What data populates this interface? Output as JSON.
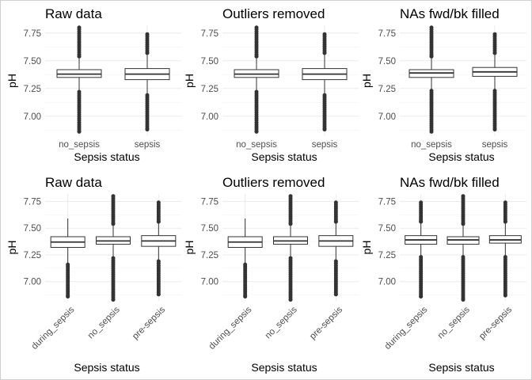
{
  "chart_data": [
    {
      "type": "box",
      "title": "Raw data",
      "xlabel": "Sepsis status",
      "ylabel": "pH",
      "ylim": [
        6.82,
        7.82
      ],
      "yticks": [
        "7.00",
        "7.25",
        "7.50",
        "7.75"
      ],
      "x_rotated": false,
      "categories": [
        "no_sepsis",
        "sepsis"
      ],
      "boxes": [
        {
          "q1": 7.35,
          "median": 7.38,
          "q3": 7.42,
          "whisker_low": 7.23,
          "whisker_high": 7.53,
          "outliers_low": [
            6.86,
            7.22
          ],
          "outliers_high": [
            7.54,
            7.8
          ]
        },
        {
          "q1": 7.33,
          "median": 7.38,
          "q3": 7.43,
          "whisker_low": 7.2,
          "whisker_high": 7.56,
          "outliers_low": [
            6.88,
            7.19
          ],
          "outliers_high": [
            7.57,
            7.74
          ]
        }
      ]
    },
    {
      "type": "box",
      "title": "Outliers removed",
      "xlabel": "Sepsis status",
      "ylabel": "pH",
      "ylim": [
        6.82,
        7.82
      ],
      "yticks": [
        "7.00",
        "7.25",
        "7.50",
        "7.75"
      ],
      "x_rotated": false,
      "categories": [
        "no_sepsis",
        "sepsis"
      ],
      "boxes": [
        {
          "q1": 7.35,
          "median": 7.38,
          "q3": 7.42,
          "whisker_low": 7.23,
          "whisker_high": 7.53,
          "outliers_low": [
            6.86,
            7.22
          ],
          "outliers_high": [
            7.54,
            7.8
          ]
        },
        {
          "q1": 7.33,
          "median": 7.38,
          "q3": 7.43,
          "whisker_low": 7.2,
          "whisker_high": 7.56,
          "outliers_low": [
            6.88,
            7.19
          ],
          "outliers_high": [
            7.57,
            7.74
          ]
        }
      ]
    },
    {
      "type": "box",
      "title": "NAs fwd/bk filled",
      "xlabel": "Sepsis status",
      "ylabel": "pH",
      "ylim": [
        6.82,
        7.82
      ],
      "yticks": [
        "7.00",
        "7.25",
        "7.50",
        "7.75"
      ],
      "x_rotated": false,
      "categories": [
        "no_sepsis",
        "sepsis"
      ],
      "boxes": [
        {
          "q1": 7.35,
          "median": 7.39,
          "q3": 7.42,
          "whisker_low": 7.24,
          "whisker_high": 7.53,
          "outliers_low": [
            6.86,
            7.23
          ],
          "outliers_high": [
            7.54,
            7.8
          ]
        },
        {
          "q1": 7.36,
          "median": 7.4,
          "q3": 7.44,
          "whisker_low": 7.24,
          "whisker_high": 7.56,
          "outliers_low": [
            6.88,
            7.23
          ],
          "outliers_high": [
            7.57,
            7.74
          ]
        }
      ]
    },
    {
      "type": "box",
      "title": "Raw data",
      "xlabel": "Sepsis status",
      "ylabel": "pH",
      "ylim": [
        6.82,
        7.82
      ],
      "yticks": [
        "7.00",
        "7.25",
        "7.50",
        "7.75"
      ],
      "x_rotated": true,
      "categories": [
        "during_sepsis",
        "no_sepsis",
        "pre-sepsis"
      ],
      "boxes": [
        {
          "q1": 7.32,
          "median": 7.37,
          "q3": 7.42,
          "whisker_low": 7.17,
          "whisker_high": 7.59,
          "outliers_low": [
            6.86,
            7.16
          ],
          "outliers_high": []
        },
        {
          "q1": 7.35,
          "median": 7.38,
          "q3": 7.42,
          "whisker_low": 7.23,
          "whisker_high": 7.53,
          "outliers_low": [
            6.83,
            7.22
          ],
          "outliers_high": [
            7.54,
            7.8
          ]
        },
        {
          "q1": 7.33,
          "median": 7.38,
          "q3": 7.43,
          "whisker_low": 7.2,
          "whisker_high": 7.55,
          "outliers_low": [
            6.88,
            7.19
          ],
          "outliers_high": [
            7.56,
            7.74
          ]
        }
      ]
    },
    {
      "type": "box",
      "title": "Outliers removed",
      "xlabel": "Sepsis status",
      "ylabel": "pH",
      "ylim": [
        6.82,
        7.82
      ],
      "yticks": [
        "7.00",
        "7.25",
        "7.50",
        "7.75"
      ],
      "x_rotated": true,
      "categories": [
        "during_sepsis",
        "no_sepsis",
        "pre-sepsis"
      ],
      "boxes": [
        {
          "q1": 7.32,
          "median": 7.37,
          "q3": 7.42,
          "whisker_low": 7.17,
          "whisker_high": 7.59,
          "outliers_low": [
            6.86,
            7.16
          ],
          "outliers_high": []
        },
        {
          "q1": 7.35,
          "median": 7.38,
          "q3": 7.42,
          "whisker_low": 7.23,
          "whisker_high": 7.53,
          "outliers_low": [
            6.83,
            7.22
          ],
          "outliers_high": [
            7.54,
            7.8
          ]
        },
        {
          "q1": 7.33,
          "median": 7.38,
          "q3": 7.43,
          "whisker_low": 7.2,
          "whisker_high": 7.55,
          "outliers_low": [
            6.88,
            7.19
          ],
          "outliers_high": [
            7.56,
            7.74
          ]
        }
      ]
    },
    {
      "type": "box",
      "title": "NAs fwd/bk filled",
      "xlabel": "Sepsis status",
      "ylabel": "pH",
      "ylim": [
        6.82,
        7.82
      ],
      "yticks": [
        "7.00",
        "7.25",
        "7.50",
        "7.75"
      ],
      "x_rotated": true,
      "categories": [
        "during_sepsis",
        "no_sepsis",
        "pre-sepsis"
      ],
      "boxes": [
        {
          "q1": 7.35,
          "median": 7.39,
          "q3": 7.43,
          "whisker_low": 7.24,
          "whisker_high": 7.55,
          "outliers_low": [
            6.86,
            7.23
          ],
          "outliers_high": [
            7.56,
            7.74
          ]
        },
        {
          "q1": 7.35,
          "median": 7.39,
          "q3": 7.42,
          "whisker_low": 7.24,
          "whisker_high": 7.53,
          "outliers_low": [
            6.83,
            7.23
          ],
          "outliers_high": [
            7.54,
            7.8
          ]
        },
        {
          "q1": 7.36,
          "median": 7.39,
          "q3": 7.43,
          "whisker_low": 7.24,
          "whisker_high": 7.55,
          "outliers_low": [
            6.87,
            7.23
          ],
          "outliers_high": [
            7.56,
            7.74
          ]
        }
      ]
    }
  ]
}
